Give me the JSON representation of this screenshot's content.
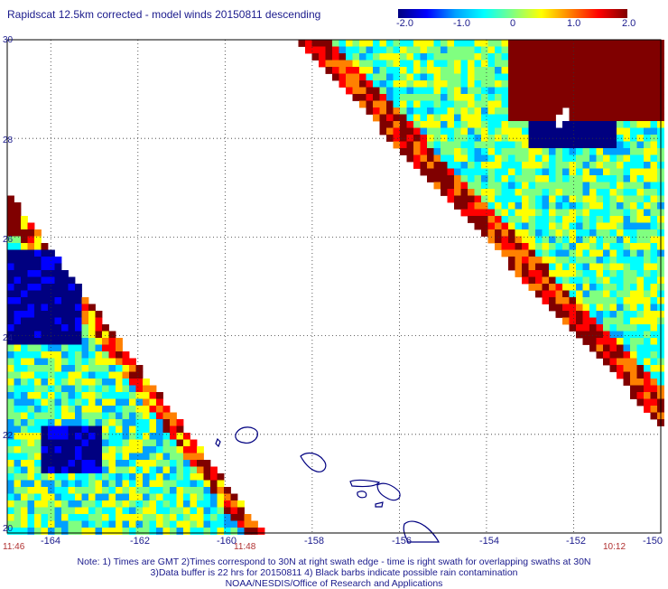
{
  "title": "Rapidscat 12.5km corrected - model winds 20150811 descending",
  "colorbar": {
    "ticks": [
      "-2.0",
      "-1.0",
      "0",
      "1.0",
      "2.0"
    ],
    "colors": [
      "#000080",
      "#0000ff",
      "#00a0ff",
      "#00ffff",
      "#80ff80",
      "#ffff00",
      "#ff8000",
      "#ff0000",
      "#800000"
    ]
  },
  "axes": {
    "lat_labels": [
      "30",
      "28",
      "26",
      "24",
      "22",
      "20"
    ],
    "lon_labels": [
      "-164",
      "-162",
      "-160",
      "-158",
      "-156",
      "-154",
      "-152",
      "-150"
    ],
    "lat_range": [
      20,
      30
    ],
    "lon_range": [
      -165,
      -150
    ]
  },
  "times": {
    "left": "11:46",
    "middle": "11:48",
    "right": "10:12"
  },
  "notes": [
    "Note: 1) Times are GMT 2)Times correspond to 30N at right swath edge - time is right swath for overlapping swaths at 30N",
    "3)Data buffer is 22 hrs for 20150811 4) Black barbs indicate possible rain contamination",
    "NOAA/NESDIS/Office of Research and Applications"
  ]
}
